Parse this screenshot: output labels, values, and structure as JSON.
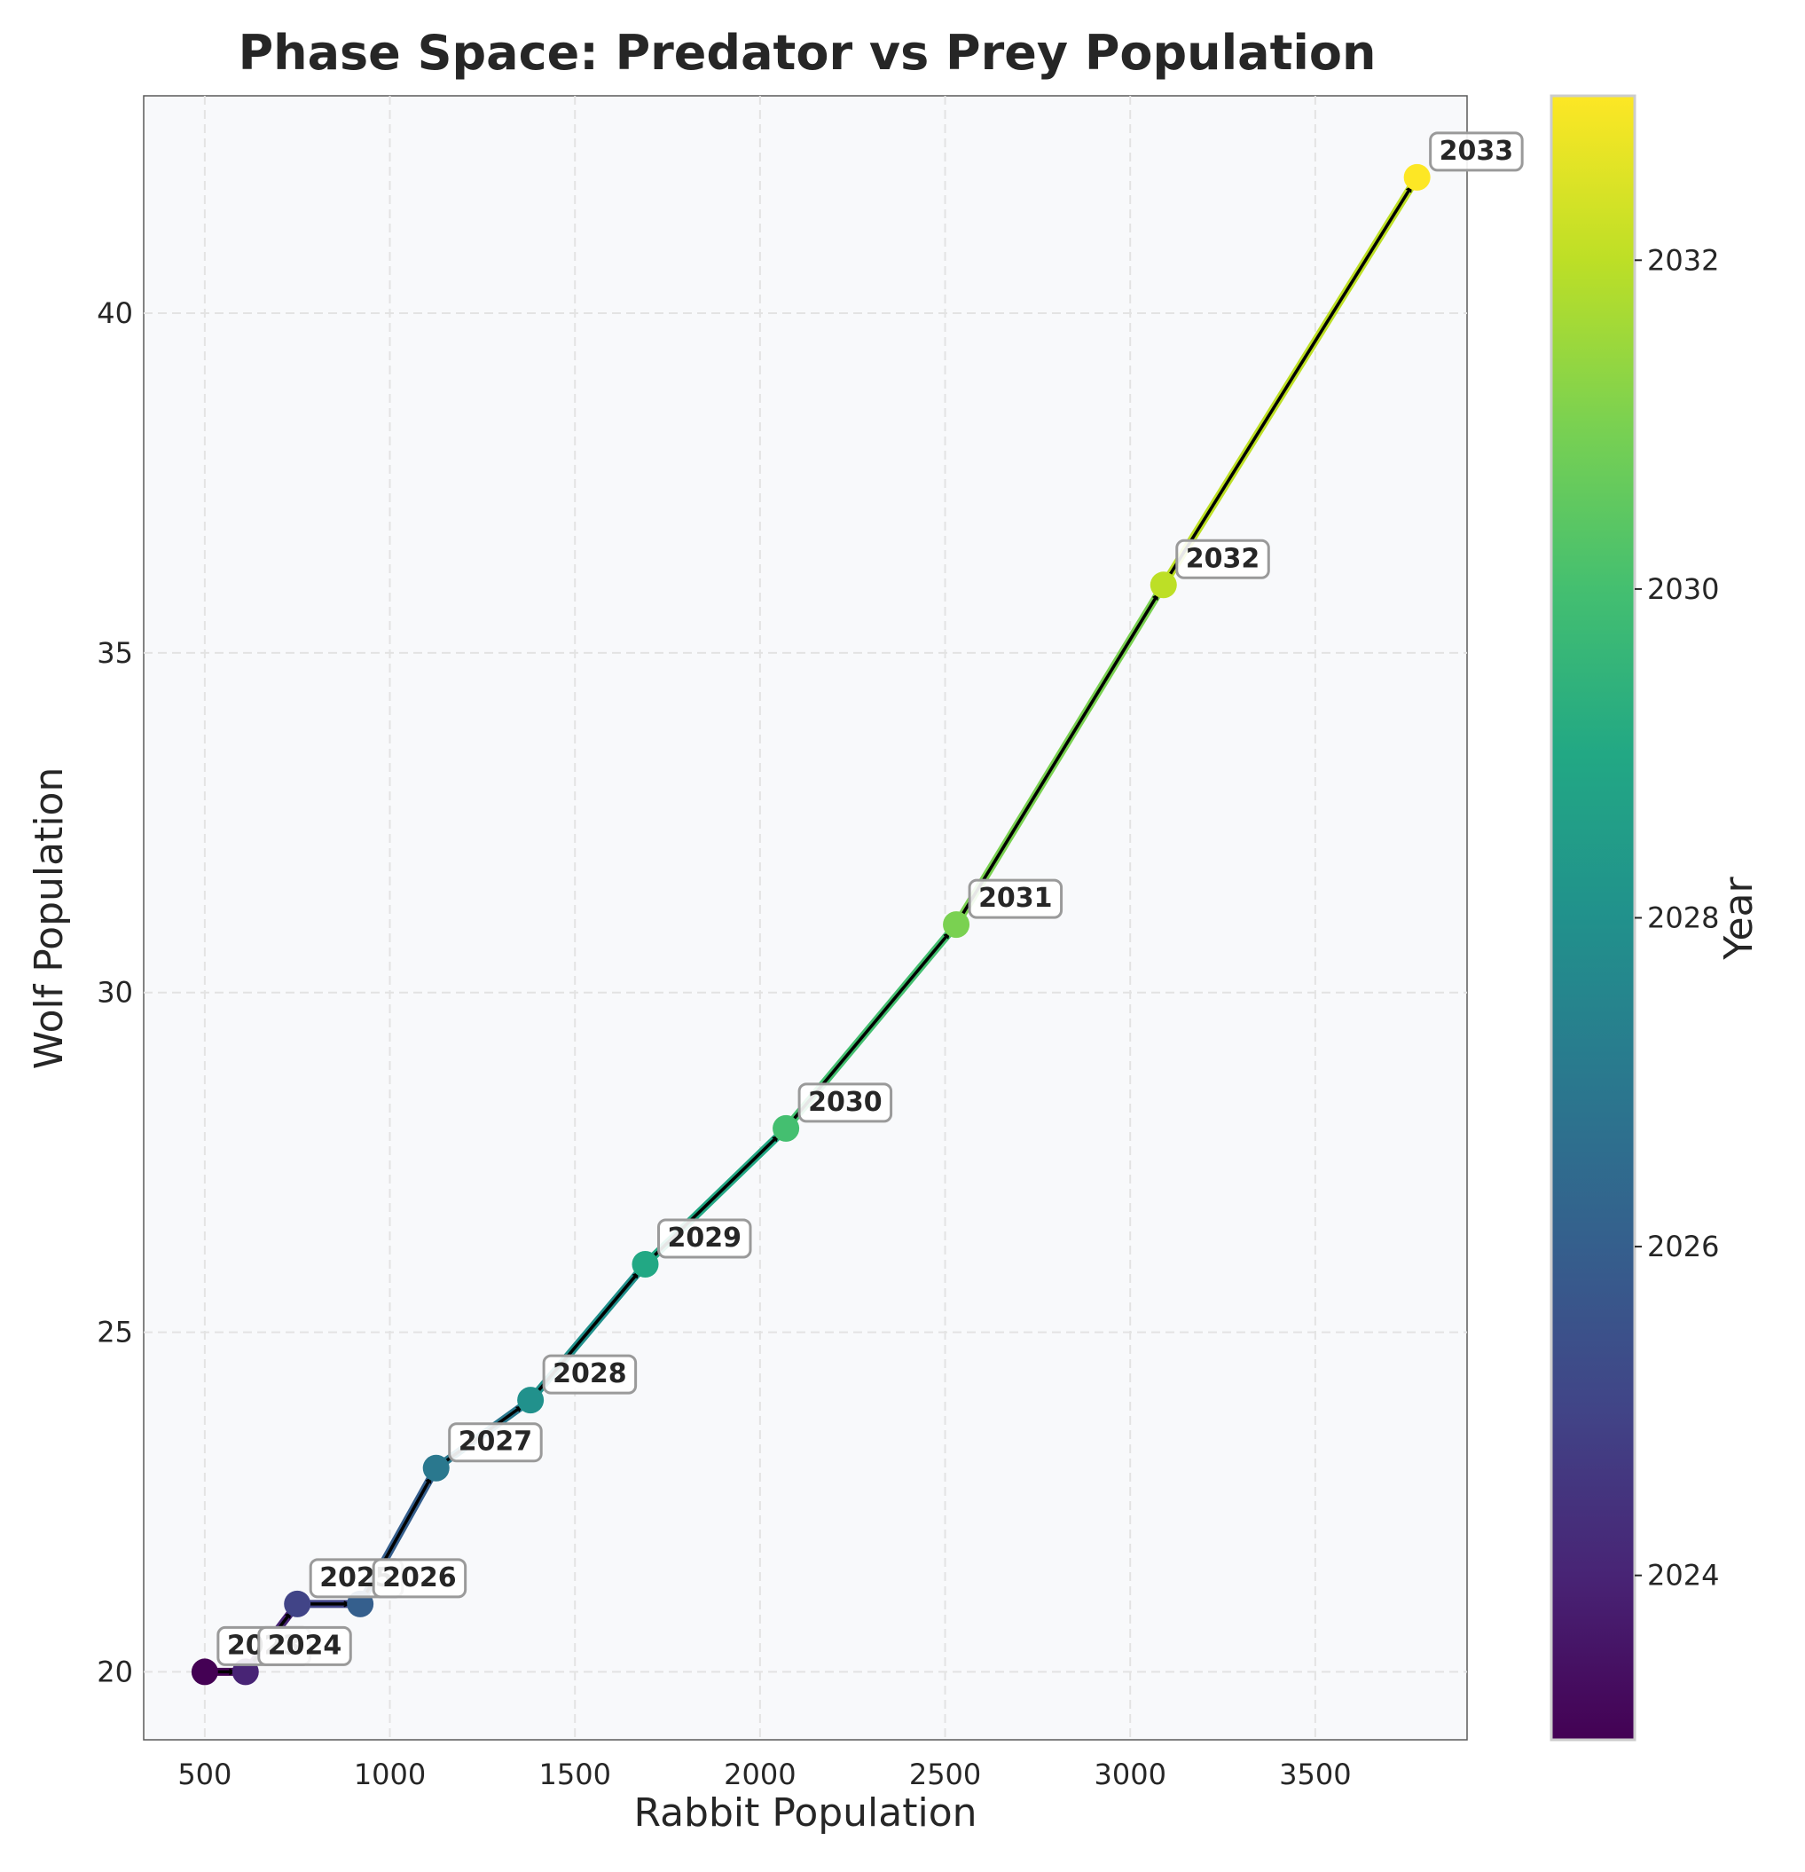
{
  "chart_data": {
    "type": "scatter",
    "title": "Phase Space: Predator vs Prey Population",
    "xlabel": "Rabbit Population",
    "ylabel": "Wolf Population",
    "xlim": [
      335,
      3910
    ],
    "ylim": [
      19.0,
      43.2
    ],
    "xticks": [
      500,
      1000,
      1500,
      2000,
      2500,
      3000,
      3500
    ],
    "yticks": [
      20,
      25,
      30,
      35,
      40
    ],
    "grid": true,
    "colormap": "viridis",
    "colorbar": {
      "label": "Year",
      "range": [
        2023,
        2033
      ],
      "ticks": [
        2024,
        2026,
        2028,
        2030,
        2032
      ]
    },
    "series": [
      {
        "points": [
          {
            "year": "2023",
            "x": 500,
            "y": 20
          },
          {
            "year": "2024",
            "x": 610,
            "y": 20
          },
          {
            "year": "2025",
            "x": 750,
            "y": 21
          },
          {
            "year": "2026",
            "x": 920,
            "y": 21
          },
          {
            "year": "2027",
            "x": 1125,
            "y": 23
          },
          {
            "year": "2028",
            "x": 1380,
            "y": 24
          },
          {
            "year": "2029",
            "x": 1690,
            "y": 26
          },
          {
            "year": "2030",
            "x": 2070,
            "y": 28
          },
          {
            "year": "2031",
            "x": 2530,
            "y": 31
          },
          {
            "year": "2032",
            "x": 3090,
            "y": 36
          },
          {
            "year": "2033",
            "x": 3775,
            "y": 42
          }
        ]
      }
    ]
  }
}
